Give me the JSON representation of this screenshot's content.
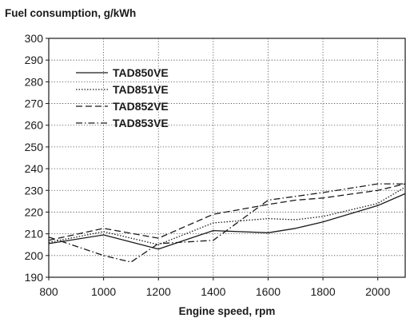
{
  "chart_data": {
    "type": "line",
    "title": "Fuel consumption, g/kWh",
    "xlabel": "Engine speed, rpm",
    "ylabel": "",
    "xlim": [
      800,
      2100
    ],
    "ylim": [
      190,
      300
    ],
    "xticks": [
      800,
      1000,
      1200,
      1400,
      1600,
      1800,
      2000
    ],
    "yticks": [
      190,
      200,
      210,
      220,
      230,
      240,
      250,
      260,
      270,
      280,
      290,
      300
    ],
    "grid": true,
    "legend_position": "top-left",
    "series": [
      {
        "name": "TAD850VE",
        "dash": "solid",
        "color": "#1a1a1a",
        "points": [
          [
            800,
            205.5
          ],
          [
            1000,
            209.5
          ],
          [
            1200,
            203
          ],
          [
            1400,
            211.5
          ],
          [
            1600,
            210.5
          ],
          [
            1700,
            212.5
          ],
          [
            1800,
            215.5
          ],
          [
            2000,
            223
          ],
          [
            2100,
            228.5
          ]
        ]
      },
      {
        "name": "TAD851VE",
        "dash": "dotted",
        "color": "#1a1a1a",
        "points": [
          [
            800,
            206
          ],
          [
            1000,
            211
          ],
          [
            1200,
            205
          ],
          [
            1400,
            215
          ],
          [
            1600,
            217
          ],
          [
            1700,
            216.5
          ],
          [
            1800,
            218
          ],
          [
            2000,
            224
          ],
          [
            2100,
            231.5
          ]
        ]
      },
      {
        "name": "TAD852VE",
        "dash": "dashed",
        "color": "#1a1a1a",
        "points": [
          [
            800,
            207
          ],
          [
            1000,
            212.5
          ],
          [
            1200,
            208
          ],
          [
            1400,
            219
          ],
          [
            1600,
            223.5
          ],
          [
            1700,
            225.5
          ],
          [
            1800,
            226.5
          ],
          [
            2000,
            230
          ],
          [
            2100,
            233
          ]
        ]
      },
      {
        "name": "TAD853VE",
        "dash": "dashdot",
        "color": "#1a1a1a",
        "points": [
          [
            800,
            208.5
          ],
          [
            1000,
            200
          ],
          [
            1100,
            197
          ],
          [
            1200,
            205.5
          ],
          [
            1400,
            207
          ],
          [
            1600,
            225.5
          ],
          [
            1800,
            229
          ],
          [
            2000,
            233
          ],
          [
            2100,
            233
          ]
        ]
      }
    ]
  }
}
